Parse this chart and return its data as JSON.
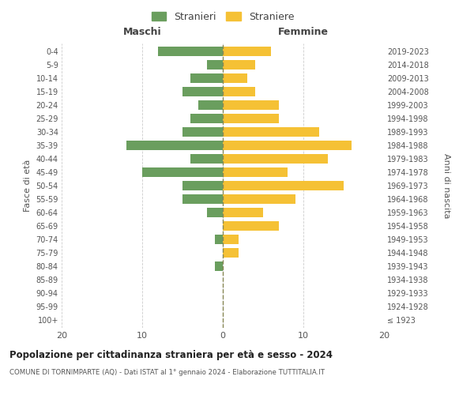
{
  "age_groups": [
    "100+",
    "95-99",
    "90-94",
    "85-89",
    "80-84",
    "75-79",
    "70-74",
    "65-69",
    "60-64",
    "55-59",
    "50-54",
    "45-49",
    "40-44",
    "35-39",
    "30-34",
    "25-29",
    "20-24",
    "15-19",
    "10-14",
    "5-9",
    "0-4"
  ],
  "birth_years": [
    "≤ 1923",
    "1924-1928",
    "1929-1933",
    "1934-1938",
    "1939-1943",
    "1944-1948",
    "1949-1953",
    "1954-1958",
    "1959-1963",
    "1964-1968",
    "1969-1973",
    "1974-1978",
    "1979-1983",
    "1984-1988",
    "1989-1993",
    "1994-1998",
    "1999-2003",
    "2004-2008",
    "2009-2013",
    "2014-2018",
    "2019-2023"
  ],
  "males": [
    0,
    0,
    0,
    0,
    1,
    0,
    1,
    0,
    2,
    5,
    5,
    10,
    4,
    12,
    5,
    4,
    3,
    5,
    4,
    2,
    8
  ],
  "females": [
    0,
    0,
    0,
    0,
    0,
    2,
    2,
    7,
    5,
    9,
    15,
    8,
    13,
    16,
    12,
    7,
    7,
    4,
    3,
    4,
    6
  ],
  "male_color": "#6a9e5e",
  "female_color": "#f5c135",
  "background_color": "#ffffff",
  "grid_color": "#cccccc",
  "title": "Popolazione per cittadinanza straniera per età e sesso - 2024",
  "subtitle": "COMUNE DI TORNIMPARTE (AQ) - Dati ISTAT al 1° gennaio 2024 - Elaborazione TUTTITALIA.IT",
  "xlabel_left": "Maschi",
  "xlabel_right": "Femmine",
  "ylabel_left": "Fasce di età",
  "ylabel_right": "Anni di nascita",
  "legend_male": "Stranieri",
  "legend_female": "Straniere",
  "xlim": 20,
  "bar_height": 0.72
}
